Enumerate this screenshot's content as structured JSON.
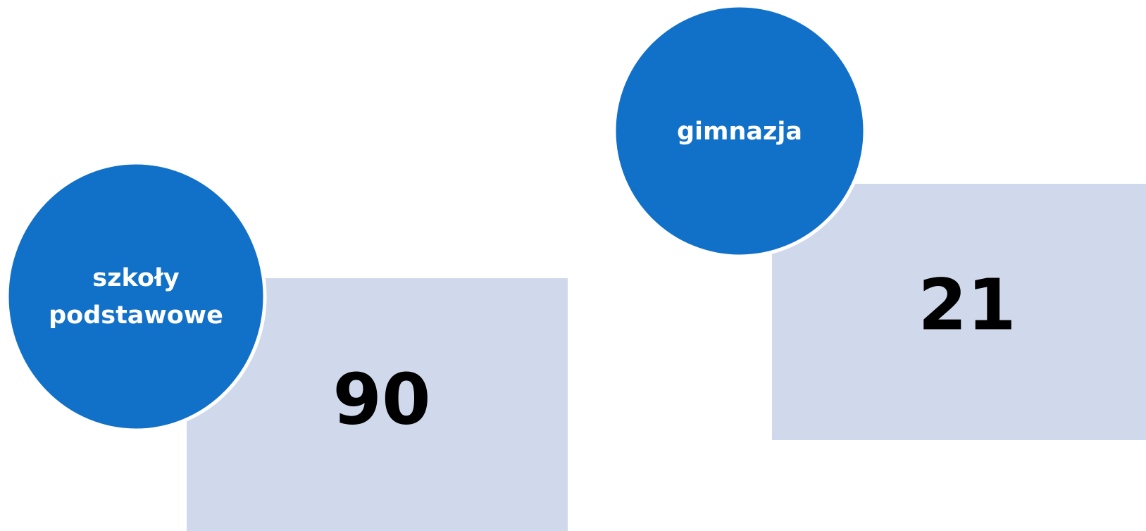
{
  "items": [
    {
      "label": [
        "szkoły",
        "podstawowe"
      ],
      "value": "90"
    },
    {
      "label": [
        "gimnazja"
      ],
      "value": "21"
    }
  ]
}
